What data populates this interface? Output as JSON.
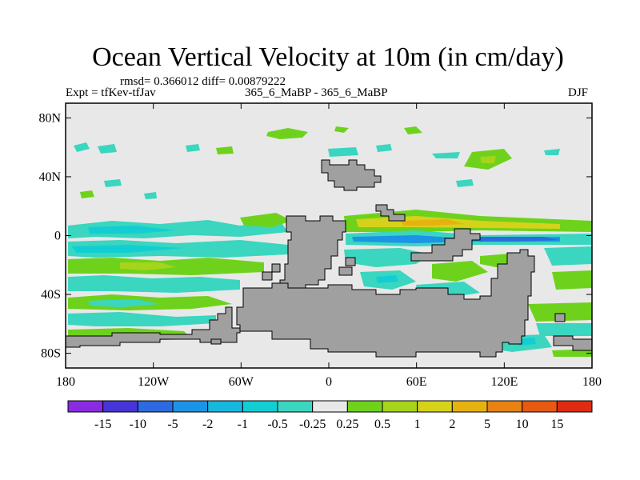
{
  "chart_data": {
    "type": "heatmap",
    "title": "Ocean Vertical Velocity at 10m (in cm/day)",
    "stats_text": "rmsd= 0.366012 diff= 0.00879222",
    "left_label": "Expt = tfKev-tfJav",
    "center_label": "365_6_MaBP - 365_6_MaBP",
    "right_label": "DJF",
    "x_ticks": [
      "180",
      "120W",
      "60W",
      "0",
      "60E",
      "120E",
      "180"
    ],
    "x_tick_values": [
      -180,
      -120,
      -60,
      0,
      60,
      120,
      180
    ],
    "y_ticks": [
      "80N",
      "40N",
      "0",
      "40S",
      "80S"
    ],
    "y_tick_values": [
      80,
      40,
      0,
      -40,
      -80
    ],
    "xlim": [
      -180,
      180
    ],
    "ylim": [
      -90,
      90
    ],
    "contour_levels": [
      "-15",
      "-10",
      "-5",
      "-2",
      "-1",
      "-0.5",
      "-0.25",
      "0.25",
      "0.5",
      "1",
      "2",
      "5",
      "10",
      "15"
    ],
    "colorbar_colors": [
      "#8a2be2",
      "#4636d8",
      "#2d6ae0",
      "#1c94e6",
      "#17b8e0",
      "#12ced2",
      "#3ad6bf",
      "#e8e8e8",
      "#6ed21c",
      "#a5d41a",
      "#d6d21a",
      "#e6b210",
      "#e88212",
      "#e65a12",
      "#de2c10"
    ],
    "background_color": "#e8e8e8",
    "land_color": "#a0a0a0"
  }
}
